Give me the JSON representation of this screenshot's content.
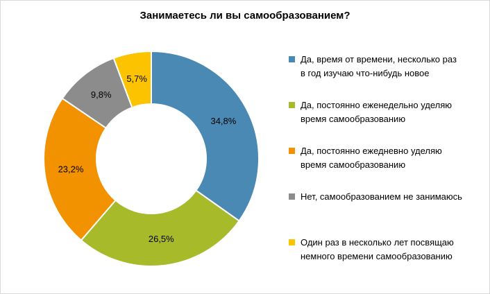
{
  "chart_data": {
    "type": "pie",
    "title": "Занимаетесь ли вы самообразованием?",
    "donut": true,
    "legend_position": "right",
    "slices": [
      {
        "label": "Да, время от времени, несколько раз в год изучаю что-нибудь новое",
        "value": 34.8,
        "value_label": "34,8%",
        "color": "#4a89b3"
      },
      {
        "label": "Да, постоянно еженедельно уделяю время самообразованию",
        "value": 26.5,
        "value_label": "26,5%",
        "color": "#a6ba2a"
      },
      {
        "label": "Да, постоянно ежедневно уделяю время самообразованию",
        "value": 23.2,
        "value_label": "23,2%",
        "color": "#f39200"
      },
      {
        "label": "Нет, самообразованием не занимаюсь",
        "value": 9.8,
        "value_label": "9,8%",
        "color": "#8c8c8c"
      },
      {
        "label": "Один раз в несколько лет посвящаю немного времени самообразованию",
        "value": 5.7,
        "value_label": "5,7%",
        "color": "#fcc400"
      }
    ]
  },
  "legend": {
    "items": [
      {
        "line1": "Да, время от времени, несколько раз",
        "line2": "в год изучаю что-нибудь новое"
      },
      {
        "line1": "Да, постоянно еженедельно уделяю",
        "line2": "время самообразованию"
      },
      {
        "line1": "Да, постоянно ежедневно уделяю",
        "line2": "время самообразованию"
      },
      {
        "line1": "Нет, самообразованием не занимаюсь",
        "line2": ""
      },
      {
        "line1": "Один раз в несколько лет посвящаю",
        "line2": "немного времени самообразованию"
      }
    ]
  }
}
